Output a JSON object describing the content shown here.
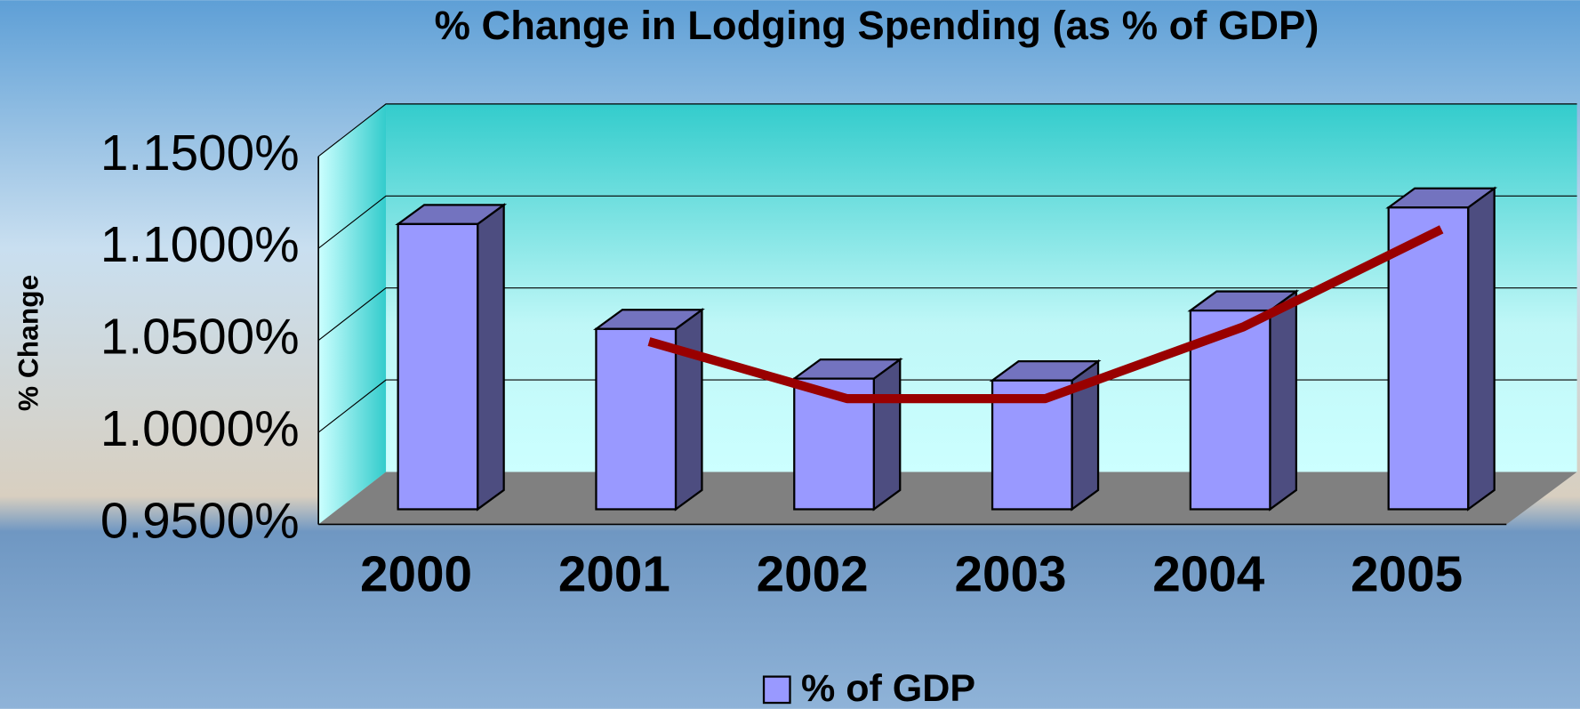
{
  "chart_data": {
    "type": "bar",
    "title": "% Change in Lodging Spending (as % of GDP)",
    "ylabel": "% Change",
    "categories": [
      "2000",
      "2001",
      "2002",
      "2003",
      "2004",
      "2005"
    ],
    "series": [
      {
        "name": "% of GDP",
        "color": "#9999ff",
        "values": [
          1.105,
          1.048,
          1.021,
          1.02,
          1.058,
          1.114
        ]
      },
      {
        "type": "line",
        "color": "#990000",
        "values": [
          null,
          1.034,
          1.003,
          1.003,
          1.042,
          1.095
        ]
      }
    ],
    "ylim": [
      0.95,
      1.15
    ],
    "yticks": [
      {
        "value": 0.95,
        "label": "0.9500%"
      },
      {
        "value": 1.0,
        "label": "1.0000%"
      },
      {
        "value": 1.05,
        "label": "1.0500%"
      },
      {
        "value": 1.1,
        "label": "1.1000%"
      },
      {
        "value": 1.15,
        "label": "1.1500%"
      }
    ],
    "grid": true,
    "legend": "bottom"
  }
}
